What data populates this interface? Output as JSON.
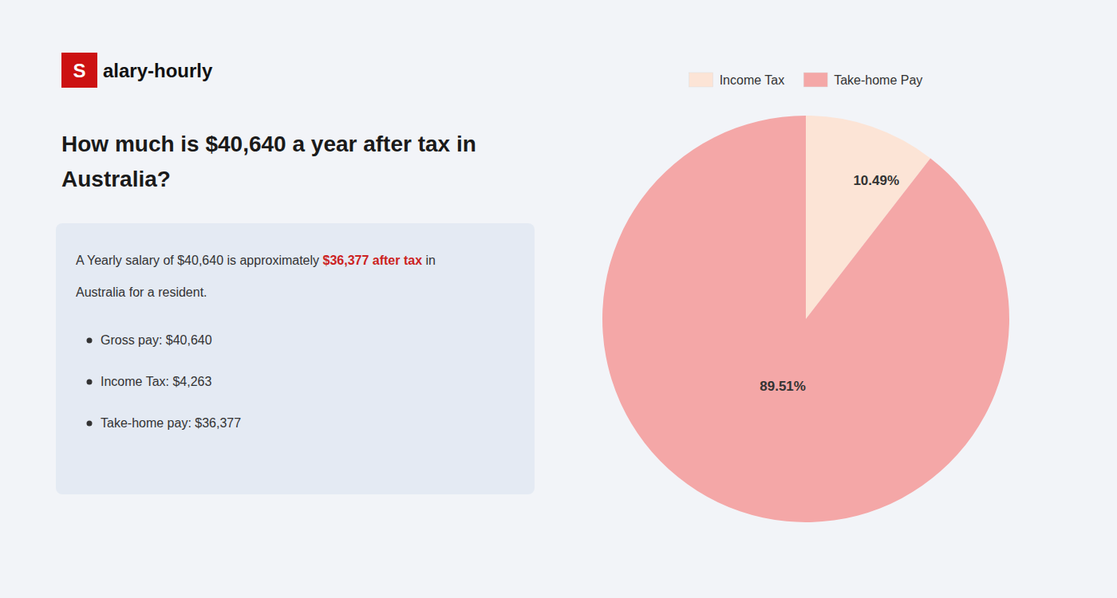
{
  "chart_data": {
    "type": "pie",
    "title": [
      "How much is $40,640 a year after tax in",
      "Australia?"
    ],
    "categories": [
      "Income Tax",
      "Take-home Pay"
    ],
    "values": [
      10.49,
      89.51
    ],
    "value_labels": [
      "10.49%",
      "89.51%"
    ],
    "colors": [
      "#fce4d6",
      "#f4a7a7"
    ],
    "data_labels": true,
    "legend": "top",
    "annotations": [
      {
        "text": "S"
      },
      {
        "text": "alary-hourly"
      },
      {
        "text": "A Yearly salary of $40,640 is approximately "
      },
      {
        "text": "$36,377 after tax",
        "color": "#cc2222"
      },
      {
        "text": " in"
      },
      {
        "text": "Australia for a resident."
      },
      {
        "text": "Gross pay: $40,640"
      },
      {
        "text": "Income Tax: $4,263"
      },
      {
        "text": "Take-home pay: $36,377"
      }
    ]
  }
}
